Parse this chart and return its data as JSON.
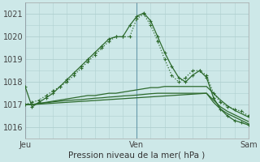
{
  "background_color": "#cde8e8",
  "grid_color": "#b0d0d0",
  "line_color": "#2d6a2d",
  "title": "Pression niveau de la mer( hPa )",
  "xlabel_ticks": [
    "Jeu",
    "Ven",
    "Sam"
  ],
  "xlabel_tick_positions": [
    0,
    16,
    32
  ],
  "ylim": [
    1015.5,
    1021.5
  ],
  "yticks": [
    1016,
    1017,
    1018,
    1019,
    1020,
    1021
  ],
  "series": [
    [
      1017.0,
      1017.1,
      1017.2,
      1017.4,
      1017.6,
      1017.8,
      1018.0,
      1018.3,
      1018.6,
      1018.9,
      1019.2,
      1019.5,
      1019.8,
      1020.0,
      1020.0,
      1020.0,
      1020.8,
      1021.0,
      1020.5,
      1019.8,
      1019.0,
      1018.3,
      1018.0,
      1018.2,
      1018.5,
      1018.5,
      1018.3,
      1017.5,
      1017.1,
      1016.9,
      1016.8,
      1016.7,
      1016.5
    ],
    [
      1017.8,
      1016.9,
      1017.1,
      1017.3,
      1017.5,
      1017.8,
      1018.1,
      1018.4,
      1018.7,
      1019.0,
      1019.3,
      1019.6,
      1019.9,
      1020.0,
      1020.0,
      1020.5,
      1020.9,
      1021.05,
      1020.7,
      1020.0,
      1019.3,
      1018.7,
      1018.2,
      1018.0,
      1018.3,
      1018.5,
      1018.2,
      1017.3,
      1016.8,
      1016.5,
      1016.3,
      1016.2,
      1016.1
    ],
    [
      1017.0,
      1017.0,
      1017.05,
      1017.1,
      1017.15,
      1017.2,
      1017.25,
      1017.3,
      1017.35,
      1017.4,
      1017.4,
      1017.45,
      1017.5,
      1017.5,
      1017.55,
      1017.6,
      1017.65,
      1017.7,
      1017.75,
      1017.75,
      1017.8,
      1017.8,
      1017.8,
      1017.8,
      1017.8,
      1017.8,
      1017.8,
      1017.5,
      1017.2,
      1016.95,
      1016.75,
      1016.6,
      1016.45
    ],
    [
      1017.0,
      1017.0,
      1017.05,
      1017.08,
      1017.12,
      1017.15,
      1017.18,
      1017.2,
      1017.22,
      1017.25,
      1017.28,
      1017.3,
      1017.33,
      1017.35,
      1017.38,
      1017.4,
      1017.42,
      1017.45,
      1017.48,
      1017.5,
      1017.5,
      1017.5,
      1017.5,
      1017.5,
      1017.5,
      1017.5,
      1017.5,
      1017.2,
      1016.9,
      1016.7,
      1016.55,
      1016.4,
      1016.25
    ],
    [
      1017.0,
      1017.0,
      1017.02,
      1017.04,
      1017.06,
      1017.08,
      1017.1,
      1017.12,
      1017.14,
      1017.16,
      1017.18,
      1017.2,
      1017.22,
      1017.24,
      1017.26,
      1017.28,
      1017.3,
      1017.32,
      1017.34,
      1017.36,
      1017.38,
      1017.4,
      1017.42,
      1017.44,
      1017.46,
      1017.48,
      1017.5,
      1017.1,
      1016.8,
      1016.6,
      1016.45,
      1016.3,
      1016.15
    ]
  ],
  "marker": "+",
  "markersize": 3,
  "markeredgewidth": 0.8,
  "linewidth": 0.9,
  "n_points": 33,
  "minor_xticks": 8,
  "minor_yticks_step": 0.5
}
